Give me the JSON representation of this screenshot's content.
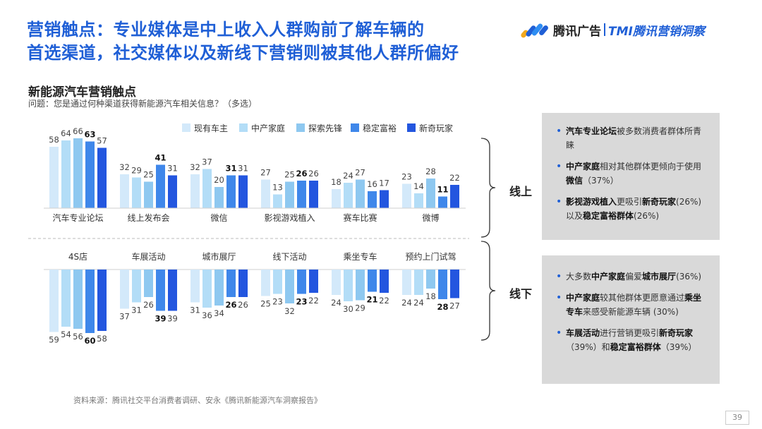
{
  "title": {
    "line1": "营销触点：专业媒体是中上收入人群购前了解车辆的",
    "line2": "首选渠道，社交媒体以及新线下营销则被其他人群所偏好"
  },
  "logo": {
    "brand": "腾讯广告",
    "sub": "TMI腾讯营销洞察"
  },
  "section_title": "新能源汽车营销触点",
  "question": "问题：您是通过何种渠道获得新能源汽车相关信息？（多选）",
  "chart_data": {
    "type": "bar",
    "legend": [
      "现有车主",
      "中产家庭",
      "探索先锋",
      "稳定富裕",
      "新奇玩家"
    ],
    "colors": [
      "#d3e9fa",
      "#b3ddf7",
      "#8ec8f0",
      "#3f87ea",
      "#2356df"
    ],
    "online": {
      "label": "线上",
      "categories": [
        "汽车专业论坛",
        "线上发布会",
        "微信",
        "影视游戏植入",
        "赛车比赛",
        "微博"
      ],
      "values": [
        [
          58,
          64,
          66,
          63,
          57
        ],
        [
          32,
          29,
          25,
          41,
          31
        ],
        [
          32,
          37,
          20,
          31,
          31
        ],
        [
          27,
          13,
          25,
          26,
          26
        ],
        [
          18,
          24,
          27,
          16,
          17
        ],
        [
          23,
          14,
          28,
          11,
          22
        ]
      ],
      "bold": [
        [
          3
        ],
        [
          3
        ],
        [
          3
        ],
        [
          3
        ],
        [],
        [
          3
        ]
      ]
    },
    "offline": {
      "label": "线下",
      "categories": [
        "4S店",
        "车展活动",
        "城市展厅",
        "线下活动",
        "乘坐专车",
        "预约上门试驾"
      ],
      "values": [
        [
          59,
          54,
          56,
          60,
          58
        ],
        [
          37,
          31,
          26,
          39,
          39
        ],
        [
          31,
          36,
          34,
          26,
          26
        ],
        [
          25,
          23,
          32,
          23,
          22
        ],
        [
          24,
          30,
          29,
          21,
          22
        ],
        [
          24,
          24,
          18,
          28,
          27
        ]
      ],
      "bold": [
        [
          3
        ],
        [
          3
        ],
        [
          3
        ],
        [
          3
        ],
        [
          3
        ],
        [
          3
        ]
      ]
    }
  },
  "panels": {
    "online": [
      [
        {
          "t": "汽车专业论坛",
          "b": true
        },
        {
          "t": "被多数消费者群体所青睐",
          "b": false
        }
      ],
      [
        {
          "t": "中产家庭",
          "b": true
        },
        {
          "t": "相对其他群体更倾向于使用",
          "b": false
        },
        {
          "t": "微信",
          "b": true
        },
        {
          "t": "（37%）",
          "b": false
        }
      ],
      [
        {
          "t": "影视游戏植入",
          "b": true
        },
        {
          "t": "更吸引",
          "b": false
        },
        {
          "t": "新奇玩家",
          "b": true
        },
        {
          "t": "(26%)以及",
          "b": false
        },
        {
          "t": "稳定富裕群体",
          "b": true
        },
        {
          "t": "(26%)",
          "b": false
        }
      ]
    ],
    "offline": [
      [
        {
          "t": "大多数",
          "b": false
        },
        {
          "t": "中产家庭",
          "b": true
        },
        {
          "t": "偏爱",
          "b": false
        },
        {
          "t": "城市展厅",
          "b": true
        },
        {
          "t": "(36%)",
          "b": false
        }
      ],
      [
        {
          "t": "中产家庭",
          "b": true
        },
        {
          "t": "较其他群体更愿意通过",
          "b": false
        },
        {
          "t": "乘坐专车",
          "b": true
        },
        {
          "t": "来感受新能源车辆 (30%)",
          "b": false
        }
      ],
      [
        {
          "t": "车展活动",
          "b": true
        },
        {
          "t": "进行营销更吸引",
          "b": false
        },
        {
          "t": "新奇玩家",
          "b": true
        },
        {
          "t": "（39%）和",
          "b": false
        },
        {
          "t": "稳定富裕群体",
          "b": true
        },
        {
          "t": "（39%）",
          "b": false
        }
      ]
    ]
  },
  "source": "资料来源：腾讯社交平台消费者调研、安永《腾讯新能源汽车洞察报告》",
  "page_number": "39"
}
